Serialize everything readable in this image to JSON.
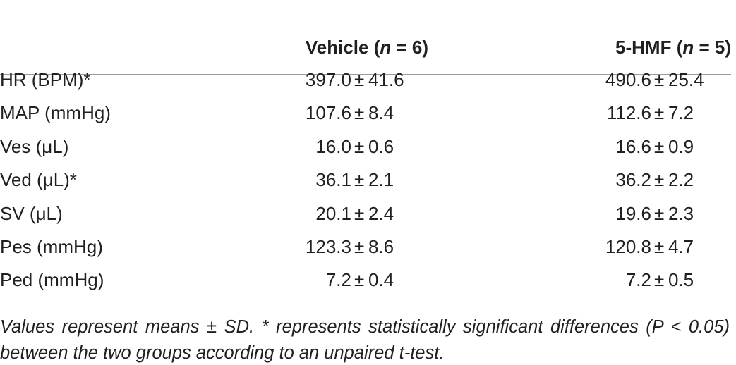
{
  "table": {
    "header": [
      [
        "Vehicle (",
        "n",
        " = 6)"
      ],
      [
        "5-HMF (",
        "n",
        " = 5)"
      ]
    ],
    "separator": "±",
    "rows": [
      {
        "label": "HR (BPM)*",
        "cells": [
          {
            "mean": "397.0",
            "sd": "41.6"
          },
          {
            "mean": "490.6",
            "sd": "25.4"
          }
        ]
      },
      {
        "label": "MAP (mmHg)",
        "cells": [
          {
            "mean": "107.6",
            "sd": "8.4"
          },
          {
            "mean": "112.6",
            "sd": "7.2"
          }
        ]
      },
      {
        "label": "Ves (μL)",
        "cells": [
          {
            "mean": "16.0",
            "sd": "0.6"
          },
          {
            "mean": "16.6",
            "sd": "0.9"
          }
        ]
      },
      {
        "label": "Ved (μL)*",
        "cells": [
          {
            "mean": "36.1",
            "sd": "2.1"
          },
          {
            "mean": "36.2",
            "sd": "2.2"
          }
        ]
      },
      {
        "label": "SV (μL)",
        "cells": [
          {
            "mean": "20.1",
            "sd": "2.4"
          },
          {
            "mean": "19.6",
            "sd": "2.3"
          }
        ]
      },
      {
        "label": "Pes (mmHg)",
        "cells": [
          {
            "mean": "123.3",
            "sd": "8.6"
          },
          {
            "mean": "120.8",
            "sd": "4.7"
          }
        ]
      },
      {
        "label": "Ped (mmHg)",
        "cells": [
          {
            "mean": "7.2",
            "sd": "0.4"
          },
          {
            "mean": "7.2",
            "sd": "0.5"
          }
        ]
      }
    ],
    "footnote": "Values represent means ± SD. * represents statistically significant differences (P < 0.05) between the two groups according to an unpaired t-test."
  }
}
